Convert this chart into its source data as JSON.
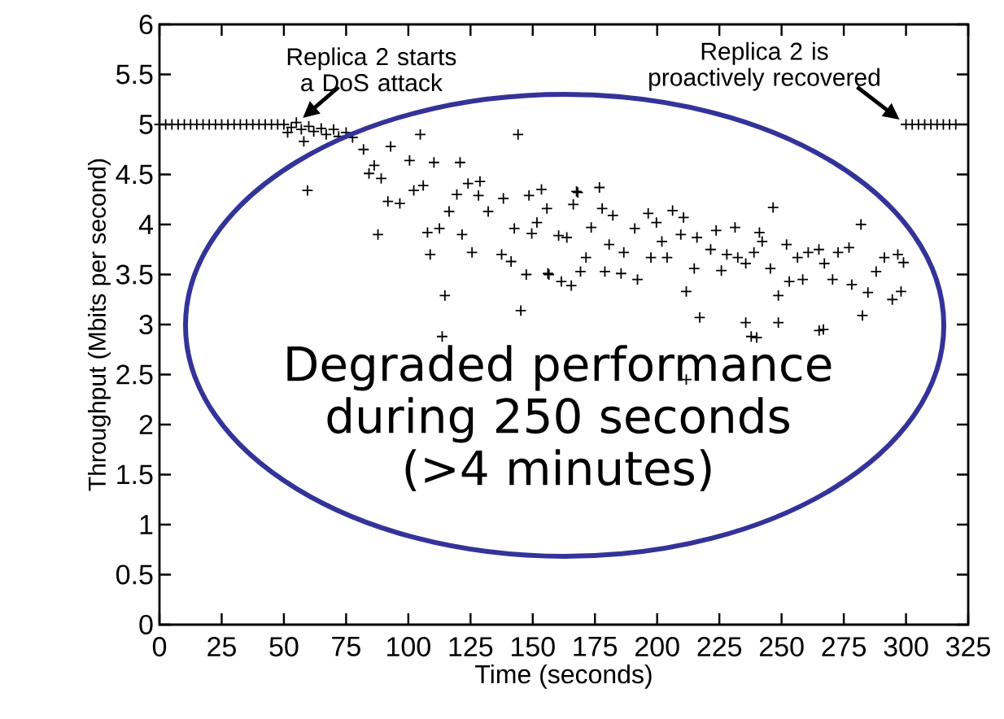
{
  "chart_data": {
    "type": "scatter",
    "xlabel": "Time (seconds)",
    "ylabel": "Throughput (Mbits per second)",
    "xlim": [
      0,
      325
    ],
    "ylim": [
      0,
      6
    ],
    "xticks": [
      0,
      25,
      50,
      75,
      100,
      125,
      150,
      175,
      200,
      225,
      250,
      275,
      300,
      325
    ],
    "yticks": [
      0,
      0.5,
      1,
      1.5,
      2,
      2.5,
      3,
      3.5,
      4,
      4.5,
      5,
      5.5,
      6
    ],
    "grid": false,
    "marker": "cross",
    "series": [
      {
        "color": "#000000",
        "x": [
          0,
          2.5,
          5,
          7.5,
          10,
          12.5,
          15,
          17.5,
          20,
          22.5,
          25,
          27.5,
          30,
          32.5,
          35,
          37.5,
          40,
          42.5,
          45,
          47.5,
          50,
          51.5,
          53,
          55,
          57,
          58,
          59.5,
          60,
          62,
          65,
          67,
          70,
          72,
          75,
          77.6,
          82,
          84.2,
          86.3,
          87.8,
          89.1,
          91.8,
          92.9,
          96.6,
          100.5,
          102.2,
          104.8,
          106,
          107.7,
          108.8,
          110.3,
          112.5,
          113.6,
          114.7,
          116.4,
          119.5,
          120.8,
          121.6,
          124,
          125.6,
          128.2,
          128.8,
          132.1,
          137.5,
          138.2,
          141.3,
          142.6,
          144.1,
          145.2,
          147.4,
          148.5,
          149.6,
          151.7,
          153.5,
          155.7,
          156.1,
          156.5,
          160.4,
          161.5,
          163.7,
          165.5,
          166.3,
          167.6,
          168.1,
          169.2,
          171.4,
          173.5,
          176.8,
          177.9,
          179,
          180.7,
          182.2,
          185.5,
          186.6,
          191,
          192.1,
          196.4,
          197.5,
          199.7,
          201.9,
          204,
          206.2,
          209.5,
          210.6,
          211.7,
          211.7,
          214.9,
          216,
          217.1,
          221.5,
          223.7,
          225.8,
          228,
          231.3,
          232.4,
          235.6,
          235.6,
          237.8,
          238.9,
          240,
          241.1,
          242.2,
          245.5,
          246.6,
          248.7,
          248.7,
          252,
          253.1,
          256.4,
          258.5,
          260.7,
          265,
          265.1,
          266.8,
          267.2,
          270.5,
          272.7,
          277.1,
          278.2,
          281.9,
          282.5,
          284.7,
          288,
          291.3,
          294.5,
          296.7,
          298,
          299,
          300,
          302.5,
          305,
          307.5,
          310,
          312.5,
          315,
          317.5,
          320
        ],
        "values": [
          5,
          5,
          5,
          5,
          5,
          5,
          5,
          5,
          5,
          5,
          5,
          5,
          5,
          5,
          5,
          5,
          5,
          5,
          5,
          5,
          5,
          4.92,
          4.97,
          5.02,
          4.95,
          4.83,
          4.34,
          4.98,
          4.93,
          4.96,
          4.9,
          4.95,
          4.88,
          4.92,
          4.87,
          4.75,
          4.51,
          4.59,
          3.9,
          4.46,
          4.23,
          4.78,
          4.21,
          4.64,
          4.34,
          4.9,
          4.39,
          3.92,
          3.7,
          4.62,
          3.96,
          2.88,
          3.29,
          4.13,
          4.3,
          4.62,
          3.9,
          4.41,
          3.72,
          4.29,
          4.43,
          4.13,
          3.7,
          4.26,
          3.63,
          3.96,
          4.9,
          3.14,
          3.5,
          4.29,
          3.91,
          4.02,
          4.35,
          4.16,
          3.51,
          3.5,
          3.89,
          3.43,
          3.87,
          3.39,
          4.2,
          4.33,
          4.32,
          3.53,
          3.67,
          3.97,
          4.37,
          4.16,
          3.53,
          3.8,
          4.09,
          3.51,
          3.72,
          3.96,
          3.45,
          4.11,
          3.67,
          4.02,
          3.83,
          3.67,
          4.14,
          3.9,
          4.07,
          3.33,
          2.45,
          3.56,
          3.87,
          3.07,
          3.75,
          3.94,
          3.54,
          3.7,
          3.97,
          3.67,
          3.61,
          3.02,
          2.88,
          3.72,
          2.87,
          3.92,
          3.83,
          3.56,
          4.17,
          3.29,
          3.02,
          3.8,
          3.43,
          3.67,
          3.45,
          3.72,
          3.75,
          2.94,
          2.95,
          3.61,
          3.45,
          3.72,
          3.77,
          3.4,
          4,
          3.09,
          3.32,
          3.53,
          3.67,
          3.25,
          3.7,
          3.33,
          3.62,
          5,
          5,
          5,
          5,
          5,
          5,
          5,
          5,
          5
        ]
      }
    ],
    "annotations": [
      {
        "text": "Replica 2 starts a DoS attack",
        "x": 55,
        "y": 5
      },
      {
        "text": "Replica 2 is proactively recovered",
        "x": 300,
        "y": 5
      },
      "Degraded performance during 250 seconds (>4 minutes)"
    ]
  }
}
